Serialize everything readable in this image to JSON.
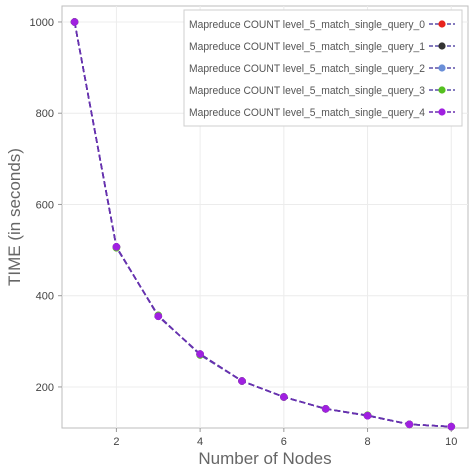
{
  "chart_data": {
    "type": "line",
    "xlabel": "Number of Nodes",
    "ylabel": "TIME (in seconds)",
    "xlim": [
      0.7,
      10.4
    ],
    "ylim": [
      110,
      1035
    ],
    "x_ticks": [
      2,
      4,
      6,
      8,
      10
    ],
    "y_ticks": [
      200,
      400,
      600,
      800,
      1000
    ],
    "grid": true,
    "legend_position": "top-right",
    "x": [
      1,
      2,
      3,
      4,
      5,
      6,
      7,
      8,
      9,
      10
    ],
    "series": [
      {
        "name": "Mapreduce COUNT level_5_match_single_query_0",
        "color": "#e8231e",
        "line_color": "#5b4fa8",
        "values": [
          1000,
          507,
          355,
          272,
          213,
          178,
          152,
          137,
          118,
          113
        ]
      },
      {
        "name": "Mapreduce COUNT level_5_match_single_query_1",
        "color": "#333333",
        "line_color": "#5b4fa8",
        "values": [
          1000,
          507,
          355,
          272,
          213,
          178,
          152,
          137,
          118,
          113
        ]
      },
      {
        "name": "Mapreduce COUNT level_5_match_single_query_2",
        "color": "#6a8fd8",
        "line_color": "#5b4fa8",
        "values": [
          1000,
          507,
          355,
          272,
          213,
          178,
          152,
          137,
          118,
          113
        ]
      },
      {
        "name": "Mapreduce COUNT level_5_match_single_query_3",
        "color": "#55c020",
        "line_color": "#5b4fa8",
        "values": [
          1000,
          505,
          357,
          270,
          213,
          178,
          152,
          138,
          118,
          113
        ]
      },
      {
        "name": "Mapreduce COUNT level_5_match_single_query_4",
        "color": "#a020e0",
        "line_color": "#6a2fb0",
        "values": [
          1000,
          507,
          355,
          272,
          213,
          178,
          152,
          137,
          118,
          113
        ]
      }
    ]
  }
}
